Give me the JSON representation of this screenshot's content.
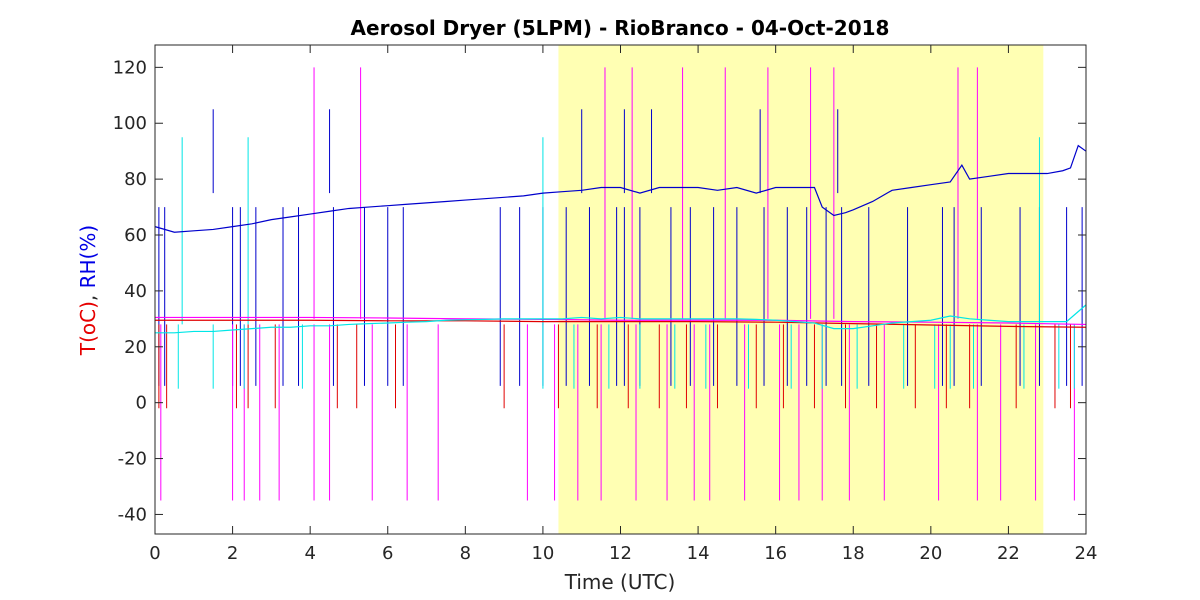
{
  "chart_data": {
    "type": "line",
    "title": "Aerosol Dryer (5LPM) - RioBranco - 04-Oct-2018",
    "xlabel": "Time (UTC)",
    "ylabel_parts": [
      {
        "text": "T(oC)",
        "color": "#e60000"
      },
      {
        "text": ", ",
        "color": "#262626"
      },
      {
        "text": "RH(%)",
        "color": "#0000e6"
      }
    ],
    "xlim": [
      0,
      24
    ],
    "ylim": [
      -47,
      128
    ],
    "xticks": [
      0,
      2,
      4,
      6,
      8,
      10,
      12,
      14,
      16,
      18,
      20,
      22,
      24
    ],
    "yticks": [
      -40,
      -20,
      0,
      20,
      40,
      60,
      80,
      100,
      120
    ],
    "grid": false,
    "legend": "none",
    "highlight": {
      "x_start": 10.4,
      "x_end": 22.9,
      "color": "#ffffb3"
    },
    "series": [
      {
        "color": "#0000cc",
        "x": [
          0,
          0.5,
          1,
          1.5,
          2,
          2.5,
          3,
          3.5,
          4,
          4.5,
          5,
          5.5,
          6,
          6.5,
          7,
          7.5,
          8,
          8.5,
          9,
          9.5,
          10,
          10.5,
          11,
          11.5,
          12,
          12.5,
          13,
          13.5,
          14,
          14.5,
          15,
          15.5,
          16,
          16.5,
          17,
          17.2,
          17.5,
          17.8,
          18,
          18.5,
          19,
          19.5,
          20,
          20.5,
          20.8,
          21,
          21.5,
          22,
          22.5,
          23,
          23.4,
          23.6,
          23.8,
          24
        ],
        "y": [
          63,
          61,
          61.5,
          62,
          63,
          64,
          65.5,
          66.5,
          67.5,
          68.5,
          69.5,
          70,
          70.5,
          71,
          71.5,
          72,
          72.5,
          73,
          73.5,
          74,
          75,
          75.5,
          76,
          77,
          77,
          75,
          77,
          77,
          77,
          76,
          77,
          75,
          77,
          77,
          77,
          70,
          67,
          68,
          69,
          72,
          76,
          77,
          78,
          79,
          85,
          80,
          81,
          82,
          82,
          82,
          83,
          84,
          92,
          90
        ]
      },
      {
        "color": "#ff00ff",
        "x": [
          0,
          2,
          4,
          6,
          8,
          10,
          12,
          14,
          16,
          18,
          20,
          22,
          24
        ],
        "y": [
          30.5,
          30.5,
          30.5,
          30.3,
          30,
          29.8,
          29.5,
          29.5,
          29.5,
          29,
          28.8,
          28.5,
          28
        ]
      },
      {
        "color": "#e00000",
        "x": [
          0,
          2,
          4,
          6,
          8,
          10,
          12,
          14,
          16,
          18,
          20,
          22,
          24
        ],
        "y": [
          29.5,
          29.5,
          29.5,
          29.3,
          29.3,
          29,
          29,
          29,
          28.8,
          28.3,
          27.8,
          27.3,
          27
        ]
      },
      {
        "color": "#00e6e6",
        "x": [
          0,
          0.5,
          1,
          1.5,
          2,
          2.5,
          3,
          3.5,
          4,
          4.5,
          5,
          5.5,
          6,
          6.5,
          7,
          7.5,
          8,
          8.5,
          9,
          9.5,
          10,
          10.5,
          11,
          11.5,
          12,
          12.5,
          13,
          13.5,
          14,
          14.5,
          15,
          15.5,
          16,
          16.5,
          17,
          17.5,
          18,
          18.5,
          19,
          19.5,
          20,
          20.5,
          21,
          21.5,
          22,
          22.5,
          23,
          23.5,
          24
        ],
        "y": [
          25,
          25,
          25.5,
          25.5,
          26,
          26.5,
          27,
          27,
          27.5,
          27.5,
          28,
          28.3,
          28.5,
          28.8,
          29,
          29.5,
          29.7,
          29.8,
          30,
          30,
          30,
          30,
          30.5,
          30,
          30.5,
          30,
          30,
          30,
          30,
          30,
          30,
          29.8,
          29.5,
          29,
          28.5,
          26.5,
          26.5,
          27.5,
          28.5,
          29,
          29.5,
          31,
          30,
          29.5,
          29,
          29,
          29,
          29,
          35
        ]
      }
    ],
    "spikes": [
      {
        "color": "#0000cc",
        "x": [
          0.1,
          0.25,
          2,
          2.2,
          2.6,
          3.3,
          3.7,
          4.6,
          5.4,
          6.0,
          6.4,
          8.9,
          9.4,
          10.0,
          10.6,
          11.2,
          11.9,
          12.1,
          12.5,
          13.3,
          13.8,
          14.4,
          15.0,
          15.7,
          16.3,
          16.8,
          17.3,
          17.7,
          18.4,
          19.4,
          20.3,
          20.6,
          21.3,
          22.3,
          22.8,
          23.5,
          23.9
        ],
        "from": 70,
        "to": 6
      },
      {
        "color": "#0000cc",
        "x": [
          1.5,
          4.5,
          11.0,
          12.1,
          12.8,
          15.6,
          17.6
        ],
        "from": 75,
        "to": 105
      },
      {
        "color": "#ff00ff",
        "x": [
          0.15,
          2.0,
          2.3,
          2.7,
          3.2,
          4.1,
          4.5,
          5.6,
          6.5,
          7.3,
          9.6,
          10.3,
          10.9,
          11.5,
          12.4,
          13.2,
          13.9,
          14.3,
          15.2,
          16.1,
          16.6,
          17.2,
          17.9,
          18.8,
          20.2,
          21.2,
          21.8,
          22.7,
          23.7
        ],
        "from": 28,
        "to": -35
      },
      {
        "color": "#ff00ff",
        "x": [
          4.1,
          5.3,
          11.6,
          12.3,
          13.6,
          14.7,
          15.8,
          16.9,
          17.5,
          20.7,
          21.2
        ],
        "from": 30,
        "to": 120
      },
      {
        "color": "#e00000",
        "x": [
          0.1,
          0.3,
          2.1,
          2.4,
          3.1,
          4.7,
          5.2,
          6.2,
          9.0,
          10.4,
          11.4,
          12.2,
          13.0,
          13.7,
          14.5,
          15.5,
          16.2,
          17.0,
          17.8,
          18.6,
          19.6,
          20.4,
          21.0,
          22.2,
          23.2,
          23.6
        ],
        "from": 28,
        "to": -2
      },
      {
        "color": "#00e6e6",
        "x": [
          0.6,
          1.5,
          2.3,
          3.8,
          10.0,
          10.8,
          11.7,
          12.5,
          13.4,
          14.2,
          15.3,
          16.4,
          17.2,
          18.1,
          19.3,
          20.1,
          20.5,
          21.1,
          22.4,
          23.3,
          23.7
        ],
        "from": 28,
        "to": 5
      },
      {
        "color": "#00e6e6",
        "x": [
          0.7,
          2.4,
          10.0,
          22.8
        ],
        "from": 28,
        "to": 95
      }
    ]
  }
}
